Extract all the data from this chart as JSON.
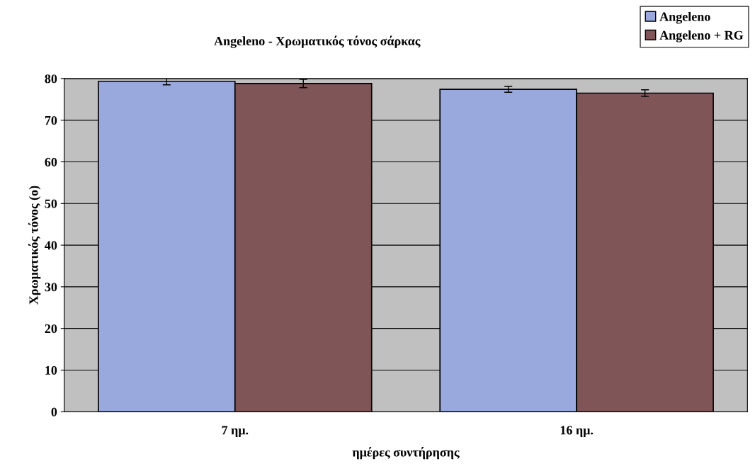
{
  "chart_data": {
    "type": "bar",
    "title": "Angeleno - Χρωματικός τόνος σάρκας",
    "xlabel": "ημέρες συντήρησης",
    "ylabel": "Χρωματικός τόνος (ο)",
    "categories": [
      "7 ημ.",
      "16 ημ."
    ],
    "series": [
      {
        "name": "Angeleno",
        "color": "#99a8dd",
        "values": [
          79.3,
          77.4
        ],
        "errors": [
          0.8,
          0.7
        ]
      },
      {
        "name": "Angeleno + RG",
        "color": "#7f5558",
        "values": [
          78.8,
          76.5
        ],
        "errors": [
          1.0,
          0.8
        ]
      }
    ],
    "ylim": [
      0,
      80
    ],
    "yticks": [
      0,
      10,
      20,
      30,
      40,
      50,
      60,
      70,
      80
    ],
    "grid": "y",
    "legend": "top right"
  }
}
